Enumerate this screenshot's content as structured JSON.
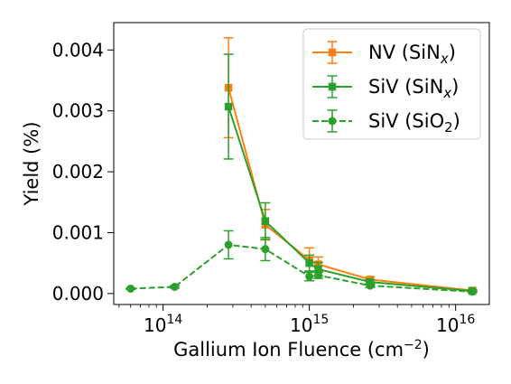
{
  "chart_data": {
    "type": "line",
    "title": "",
    "xlabel": "Gallium Ion Fluence (cm",
    "xlabel_sup": "−2",
    "xlabel_close": ")",
    "ylabel": "Yield (%)",
    "xscale": "log",
    "xlim": [
      46000000000000.0,
      1.7e+16
    ],
    "ylim": [
      -0.00018,
      0.00445
    ],
    "grid": false,
    "legend_position": "top-right",
    "x_ticks": [
      {
        "value": 100000000000000.0,
        "base": "10",
        "exp": "14"
      },
      {
        "value": 1000000000000000.0,
        "base": "10",
        "exp": "15"
      },
      {
        "value": 1e+16,
        "base": "10",
        "exp": "16"
      }
    ],
    "y_ticks": [
      {
        "value": 0.0,
        "label": "0.000"
      },
      {
        "value": 0.001,
        "label": "0.001"
      },
      {
        "value": 0.002,
        "label": "0.002"
      },
      {
        "value": 0.003,
        "label": "0.003"
      },
      {
        "value": 0.004,
        "label": "0.004"
      }
    ],
    "series": [
      {
        "name": "NV (SiN",
        "name_sub": "x",
        "name_close": ")",
        "color": "#ff7f0e",
        "marker": "square",
        "linestyle": "solid",
        "x": [
          280000000000000.0,
          500000000000000.0,
          1000000000000000.0,
          1150000000000000.0,
          2600000000000000.0,
          1.3e+16
        ],
        "y": [
          0.00338,
          0.00113,
          0.00055,
          0.00048,
          0.00023,
          5e-05
        ],
        "err": [
          0.00082,
          0.00025,
          0.0002,
          0.00012,
          4e-05,
          2e-05
        ]
      },
      {
        "name": "SiV (SiN",
        "name_sub": "x",
        "name_close": ")",
        "color": "#2ca02c",
        "marker": "square",
        "linestyle": "solid",
        "x": [
          280000000000000.0,
          500000000000000.0,
          1000000000000000.0,
          1150000000000000.0,
          2600000000000000.0,
          1.3e+16
        ],
        "y": [
          0.00307,
          0.00119,
          0.0005,
          0.0004,
          0.00019,
          4e-05
        ],
        "err": [
          0.00086,
          0.0003,
          0.00013,
          0.00011,
          4e-05,
          2e-05
        ]
      },
      {
        "name": "SiV (SiO",
        "name_sub": "2",
        "name_close": ")",
        "color": "#2ca02c",
        "marker": "circle",
        "linestyle": "dashed",
        "x": [
          60000000000000.0,
          120000000000000.0,
          280000000000000.0,
          500000000000000.0,
          1000000000000000.0,
          1150000000000000.0,
          2600000000000000.0,
          1.3e+16
        ],
        "y": [
          8e-05,
          0.00011,
          0.0008,
          0.00073,
          0.00028,
          0.0003,
          0.00013,
          3e-05
        ],
        "err": [
          1e-05,
          2e-05,
          0.00023,
          0.00019,
          7e-05,
          5e-05,
          3e-05,
          1e-05
        ]
      }
    ]
  }
}
